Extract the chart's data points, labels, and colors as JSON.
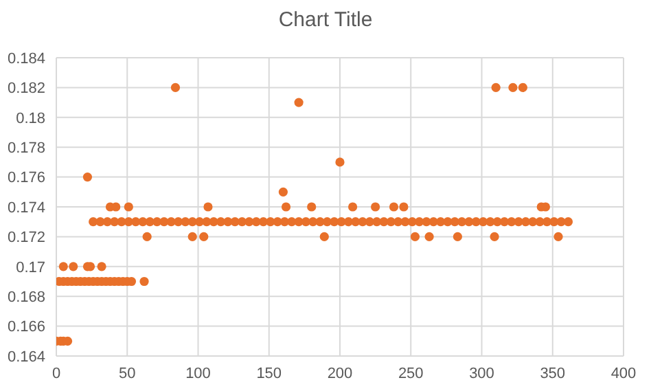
{
  "chart_data": {
    "type": "scatter",
    "title": "Chart Title",
    "series": [
      {
        "color": "#e8702a",
        "x": [
          0,
          3,
          5,
          8,
          2,
          5,
          8,
          11,
          14,
          17,
          20,
          23,
          26,
          29,
          32,
          35,
          38,
          41,
          44,
          47,
          50,
          53,
          62,
          5,
          12,
          22,
          24,
          32,
          22,
          84,
          310,
          322,
          329,
          38,
          42,
          51,
          107,
          162,
          180,
          209,
          225,
          238,
          245,
          342,
          345,
          64,
          96,
          104,
          189,
          253,
          263,
          283,
          309,
          354,
          160,
          171,
          200,
          26,
          31,
          36,
          41,
          46,
          51,
          56,
          61,
          66,
          71,
          76,
          81,
          86,
          91,
          96,
          101,
          106,
          111,
          116,
          121,
          126,
          131,
          136,
          141,
          146,
          151,
          156,
          161,
          166,
          171,
          176,
          181,
          186,
          191,
          196,
          201,
          206,
          211,
          216,
          221,
          226,
          231,
          236,
          241,
          246,
          251,
          256,
          261,
          266,
          271,
          276,
          281,
          286,
          291,
          296,
          301,
          306,
          311,
          316,
          321,
          326,
          331,
          336,
          341,
          346,
          351,
          356,
          361
        ],
        "values": [
          0.165,
          0.165,
          0.165,
          0.165,
          0.169,
          0.169,
          0.169,
          0.169,
          0.169,
          0.169,
          0.169,
          0.169,
          0.169,
          0.169,
          0.169,
          0.169,
          0.169,
          0.169,
          0.169,
          0.169,
          0.169,
          0.169,
          0.169,
          0.17,
          0.17,
          0.17,
          0.17,
          0.17,
          0.176,
          0.182,
          0.182,
          0.182,
          0.182,
          0.174,
          0.174,
          0.174,
          0.174,
          0.174,
          0.174,
          0.174,
          0.174,
          0.174,
          0.174,
          0.174,
          0.174,
          0.172,
          0.172,
          0.172,
          0.172,
          0.172,
          0.172,
          0.172,
          0.172,
          0.172,
          0.175,
          0.181,
          0.177,
          0.173,
          0.173,
          0.173,
          0.173,
          0.173,
          0.173,
          0.173,
          0.173,
          0.173,
          0.173,
          0.173,
          0.173,
          0.173,
          0.173,
          0.173,
          0.173,
          0.173,
          0.173,
          0.173,
          0.173,
          0.173,
          0.173,
          0.173,
          0.173,
          0.173,
          0.173,
          0.173,
          0.173,
          0.173,
          0.173,
          0.173,
          0.173,
          0.173,
          0.173,
          0.173,
          0.173,
          0.173,
          0.173,
          0.173,
          0.173,
          0.173,
          0.173,
          0.173,
          0.173,
          0.173,
          0.173,
          0.173,
          0.173,
          0.173,
          0.173,
          0.173,
          0.173,
          0.173,
          0.173,
          0.173,
          0.173,
          0.173,
          0.173,
          0.173,
          0.173,
          0.173,
          0.173,
          0.173,
          0.173,
          0.173,
          0.173,
          0.173,
          0.173
        ]
      }
    ],
    "xlim": [
      0,
      400
    ],
    "xticks": [
      0,
      50,
      100,
      150,
      200,
      250,
      300,
      350,
      400
    ],
    "ylim": [
      0.164,
      0.184
    ],
    "yticks": [
      0.164,
      0.166,
      0.168,
      0.17,
      0.172,
      0.174,
      0.176,
      0.178,
      0.18,
      0.182,
      0.184
    ],
    "grid": true,
    "marker": "circle",
    "legend": false
  }
}
